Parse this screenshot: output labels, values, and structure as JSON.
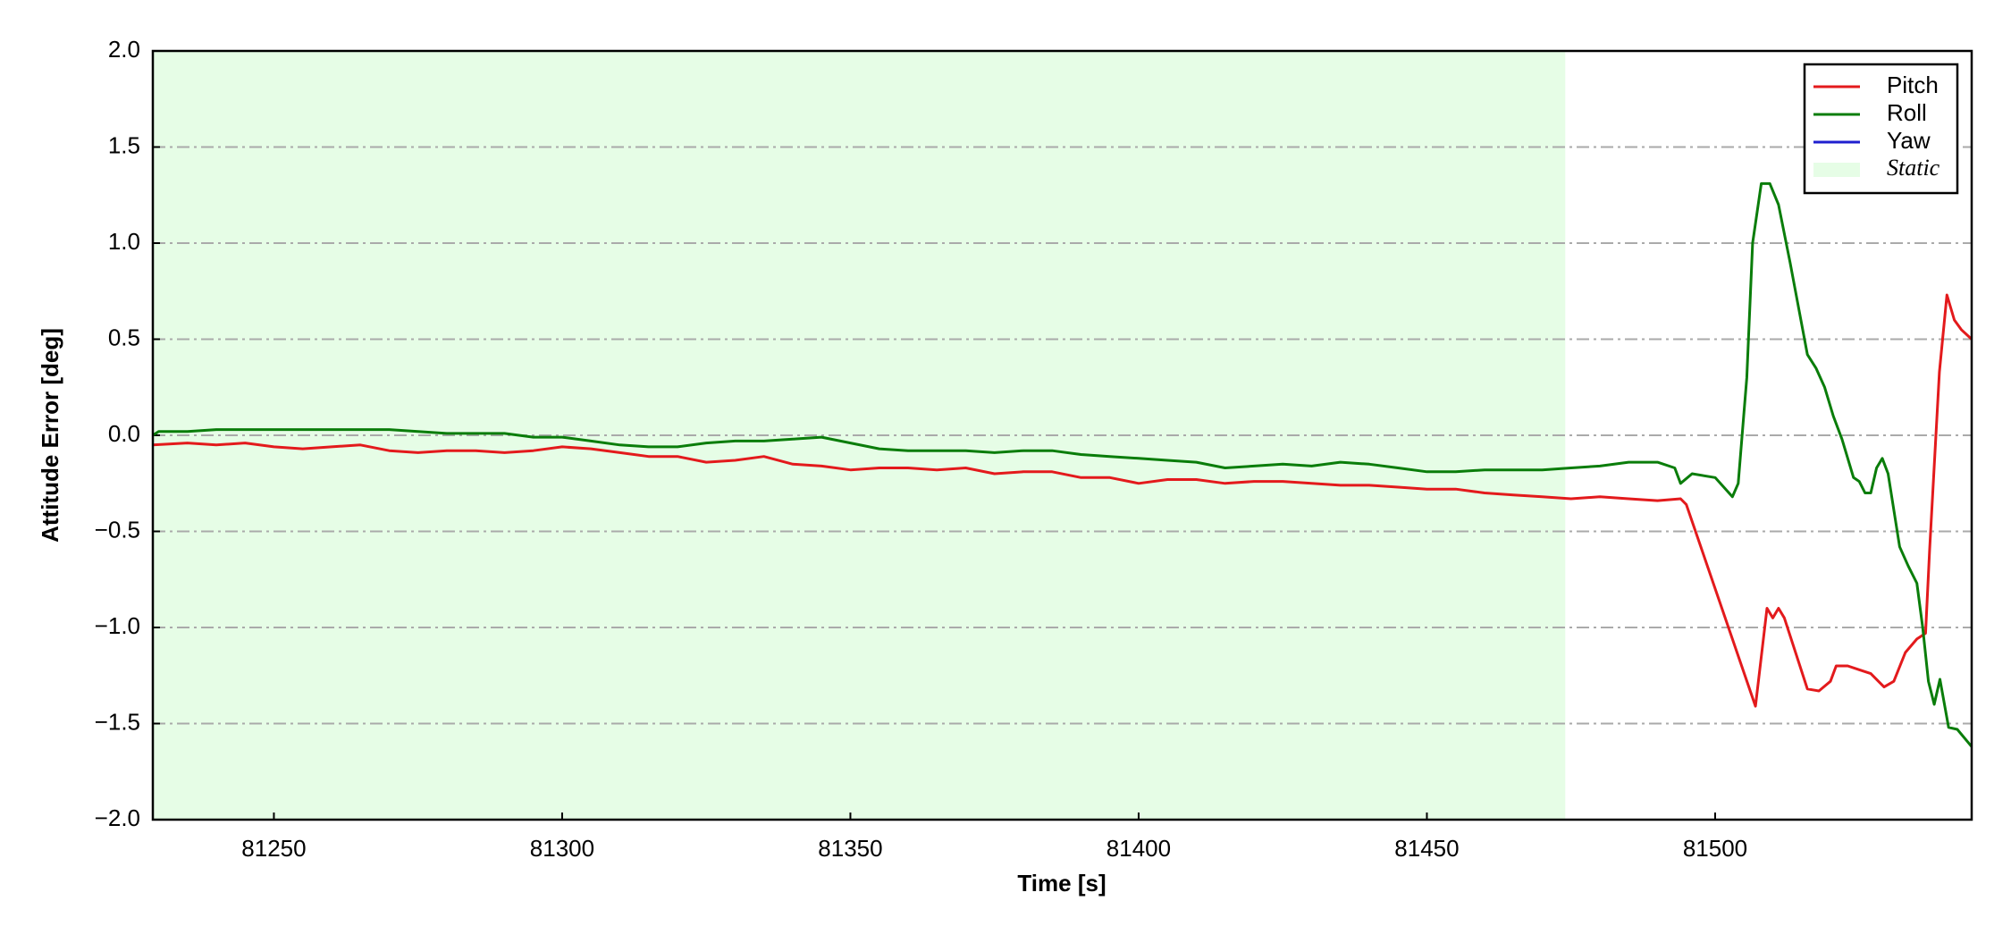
{
  "chart_data": {
    "type": "line",
    "xlabel": "Time [s]",
    "ylabel": "Attitude Error [deg]",
    "xlim": [
      81229,
      81544.5
    ],
    "ylim": [
      -2.0,
      2.0
    ],
    "xticks": [
      81250,
      81300,
      81350,
      81400,
      81450,
      81500
    ],
    "yticks": [
      {
        "value": -2.0,
        "label": "−2.0"
      },
      {
        "value": -1.5,
        "label": "−1.5"
      },
      {
        "value": -1.0,
        "label": "−1.0"
      },
      {
        "value": -0.5,
        "label": "−0.5"
      },
      {
        "value": 0,
        "label": "0.0"
      },
      0.5,
      {
        "value": 1.0,
        "label": "1.0"
      },
      1.5,
      {
        "value": 2.0,
        "label": "2.0"
      }
    ],
    "grid": true,
    "legend": "upper right",
    "spans": [
      {
        "name": "Static",
        "start": 81229,
        "end": 81474,
        "color": "#e6fde6"
      }
    ],
    "series": [
      {
        "name": "Pitch",
        "color": "#e31a1c",
        "x": [
          81229,
          81235,
          81240,
          81245,
          81250,
          81255,
          81260,
          81265,
          81270,
          81275,
          81280,
          81285,
          81290,
          81295,
          81300,
          81305,
          81310,
          81315,
          81320,
          81325,
          81330,
          81335,
          81340,
          81345,
          81350,
          81355,
          81360,
          81365,
          81370,
          81375,
          81380,
          81385,
          81390,
          81395,
          81400,
          81405,
          81410,
          81415,
          81420,
          81425,
          81430,
          81435,
          81440,
          81445,
          81450,
          81455,
          81460,
          81465,
          81470,
          81475,
          81480,
          81485,
          81490,
          81494,
          81495,
          81507,
          81509,
          81510,
          81511,
          81512,
          81516,
          81518,
          81520,
          81521,
          81523,
          81525,
          81527,
          81529.3,
          81531,
          81533,
          81535,
          81536.5,
          81537.2,
          81538.9,
          81540.2,
          81541.5,
          81542.7,
          81544.5
        ],
        "values": [
          -0.05,
          -0.04,
          -0.05,
          -0.04,
          -0.06,
          -0.07,
          -0.06,
          -0.05,
          -0.08,
          -0.09,
          -0.08,
          -0.08,
          -0.09,
          -0.08,
          -0.06,
          -0.07,
          -0.09,
          -0.11,
          -0.11,
          -0.14,
          -0.13,
          -0.11,
          -0.15,
          -0.16,
          -0.18,
          -0.17,
          -0.17,
          -0.18,
          -0.17,
          -0.2,
          -0.19,
          -0.19,
          -0.22,
          -0.22,
          -0.25,
          -0.23,
          -0.23,
          -0.25,
          -0.24,
          -0.24,
          -0.25,
          -0.26,
          -0.26,
          -0.27,
          -0.28,
          -0.28,
          -0.3,
          -0.31,
          -0.32,
          -0.33,
          -0.32,
          -0.33,
          -0.34,
          -0.33,
          -0.36,
          -1.41,
          -0.9,
          -0.95,
          -0.9,
          -0.95,
          -1.32,
          -1.33,
          -1.28,
          -1.2,
          -1.2,
          -1.22,
          -1.24,
          -1.31,
          -1.28,
          -1.13,
          -1.06,
          -1.03,
          -0.6,
          0.33,
          0.73,
          0.6,
          0.55,
          0.5
        ]
      },
      {
        "name": "Roll",
        "color": "#0a7d0a",
        "x": [
          81229,
          81230,
          81235,
          81240,
          81245,
          81250,
          81255,
          81260,
          81265,
          81270,
          81275,
          81280,
          81285,
          81290,
          81295,
          81300,
          81305,
          81310,
          81315,
          81320,
          81325,
          81330,
          81335,
          81340,
          81345,
          81350,
          81355,
          81360,
          81365,
          81370,
          81375,
          81380,
          81385,
          81390,
          81395,
          81400,
          81405,
          81410,
          81415,
          81420,
          81425,
          81430,
          81435,
          81440,
          81445,
          81450,
          81455,
          81460,
          81465,
          81470,
          81475,
          81480,
          81485,
          81490,
          81493,
          81494,
          81496,
          81500,
          81503,
          81504,
          81505.5,
          81506.5,
          81508,
          81509.5,
          81511,
          81513,
          81516,
          81517.5,
          81519,
          81520.5,
          81522,
          81524,
          81525,
          81526,
          81527,
          81528,
          81529,
          81530,
          81532,
          81533.5,
          81535,
          81536,
          81537,
          81538,
          81539,
          81540.5,
          81542,
          81544.5
        ],
        "values": [
          0.0,
          0.02,
          0.02,
          0.03,
          0.03,
          0.03,
          0.03,
          0.03,
          0.03,
          0.03,
          0.02,
          0.01,
          0.01,
          0.01,
          -0.01,
          -0.01,
          -0.03,
          -0.05,
          -0.06,
          -0.06,
          -0.04,
          -0.03,
          -0.03,
          -0.02,
          -0.01,
          -0.04,
          -0.07,
          -0.08,
          -0.08,
          -0.08,
          -0.09,
          -0.08,
          -0.08,
          -0.1,
          -0.11,
          -0.12,
          -0.13,
          -0.14,
          -0.17,
          -0.16,
          -0.15,
          -0.16,
          -0.14,
          -0.15,
          -0.17,
          -0.19,
          -0.19,
          -0.18,
          -0.18,
          -0.18,
          -0.17,
          -0.16,
          -0.14,
          -0.14,
          -0.17,
          -0.25,
          -0.2,
          -0.22,
          -0.32,
          -0.25,
          0.3,
          1.0,
          1.31,
          1.31,
          1.2,
          0.9,
          0.42,
          0.35,
          0.25,
          0.1,
          -0.02,
          -0.22,
          -0.24,
          -0.3,
          -0.3,
          -0.17,
          -0.12,
          -0.2,
          -0.58,
          -0.68,
          -0.77,
          -1.0,
          -1.28,
          -1.4,
          -1.27,
          -1.52,
          -1.53,
          -1.62
        ]
      },
      {
        "name": "Yaw",
        "color": "#1f1fcf",
        "x": [],
        "values": []
      }
    ]
  }
}
